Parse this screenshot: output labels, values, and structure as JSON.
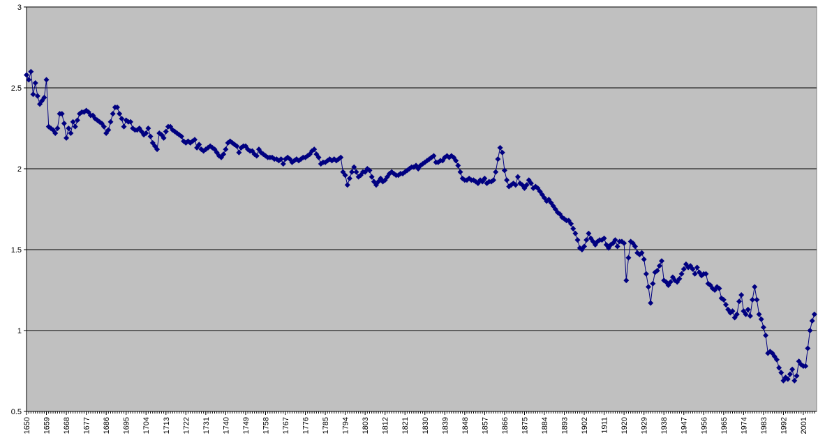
{
  "chart_data": {
    "type": "line",
    "color": "#000080",
    "marker": "diamond",
    "grid": true,
    "plot_background": "#c0c0c0",
    "xlim": [
      1650,
      2007
    ],
    "ylim": [
      0.5,
      3
    ],
    "yticks": [
      0.5,
      1,
      1.5,
      2,
      2.5,
      3
    ],
    "xticks": [
      1650,
      1659,
      1668,
      1677,
      1686,
      1695,
      1704,
      1713,
      1722,
      1731,
      1740,
      1749,
      1758,
      1767,
      1776,
      1785,
      1794,
      1803,
      1812,
      1821,
      1830,
      1839,
      1848,
      1857,
      1866,
      1875,
      1884,
      1893,
      1902,
      1911,
      1920,
      1929,
      1938,
      1947,
      1956,
      1965,
      1974,
      1983,
      1992,
      2001
    ],
    "x": [
      1650,
      1651,
      1652,
      1653,
      1654,
      1655,
      1656,
      1657,
      1658,
      1659,
      1660,
      1661,
      1662,
      1663,
      1664,
      1665,
      1666,
      1667,
      1668,
      1669,
      1670,
      1671,
      1672,
      1673,
      1674,
      1675,
      1676,
      1677,
      1678,
      1679,
      1680,
      1681,
      1682,
      1683,
      1684,
      1685,
      1686,
      1687,
      1688,
      1689,
      1690,
      1691,
      1692,
      1693,
      1694,
      1695,
      1696,
      1697,
      1698,
      1699,
      1700,
      1701,
      1702,
      1703,
      1704,
      1705,
      1706,
      1707,
      1708,
      1709,
      1710,
      1711,
      1712,
      1713,
      1714,
      1715,
      1716,
      1717,
      1718,
      1719,
      1720,
      1721,
      1722,
      1723,
      1724,
      1725,
      1726,
      1727,
      1728,
      1729,
      1730,
      1731,
      1732,
      1733,
      1734,
      1735,
      1736,
      1737,
      1738,
      1739,
      1740,
      1741,
      1742,
      1743,
      1744,
      1745,
      1746,
      1747,
      1748,
      1749,
      1750,
      1751,
      1752,
      1753,
      1754,
      1755,
      1756,
      1757,
      1758,
      1759,
      1760,
      1761,
      1762,
      1763,
      1764,
      1765,
      1766,
      1767,
      1768,
      1769,
      1770,
      1771,
      1772,
      1773,
      1774,
      1775,
      1776,
      1777,
      1778,
      1779,
      1780,
      1781,
      1782,
      1783,
      1784,
      1785,
      1786,
      1787,
      1788,
      1789,
      1790,
      1791,
      1792,
      1793,
      1794,
      1795,
      1796,
      1797,
      1798,
      1799,
      1800,
      1801,
      1802,
      1803,
      1804,
      1805,
      1806,
      1807,
      1808,
      1809,
      1810,
      1811,
      1812,
      1813,
      1814,
      1815,
      1816,
      1817,
      1818,
      1819,
      1820,
      1821,
      1822,
      1823,
      1824,
      1825,
      1826,
      1827,
      1828,
      1829,
      1830,
      1831,
      1832,
      1833,
      1834,
      1835,
      1836,
      1837,
      1838,
      1839,
      1840,
      1841,
      1842,
      1843,
      1844,
      1845,
      1846,
      1847,
      1848,
      1849,
      1850,
      1851,
      1852,
      1853,
      1854,
      1855,
      1856,
      1857,
      1858,
      1859,
      1860,
      1861,
      1862,
      1863,
      1864,
      1865,
      1866,
      1867,
      1868,
      1869,
      1870,
      1871,
      1872,
      1873,
      1874,
      1875,
      1876,
      1877,
      1878,
      1879,
      1880,
      1881,
      1882,
      1883,
      1884,
      1885,
      1886,
      1887,
      1888,
      1889,
      1890,
      1891,
      1892,
      1893,
      1894,
      1895,
      1896,
      1897,
      1898,
      1899,
      1900,
      1901,
      1902,
      1903,
      1904,
      1905,
      1906,
      1907,
      1908,
      1909,
      1910,
      1911,
      1912,
      1913,
      1914,
      1915,
      1916,
      1917,
      1918,
      1919,
      1920,
      1921,
      1922,
      1923,
      1924,
      1925,
      1926,
      1927,
      1928,
      1929,
      1930,
      1931,
      1932,
      1933,
      1934,
      1935,
      1936,
      1937,
      1938,
      1939,
      1940,
      1941,
      1942,
      1943,
      1944,
      1945,
      1946,
      1947,
      1948,
      1949,
      1950,
      1951,
      1952,
      1953,
      1954,
      1955,
      1956,
      1957,
      1958,
      1959,
      1960,
      1961,
      1962,
      1963,
      1964,
      1965,
      1966,
      1967,
      1968,
      1969,
      1970,
      1971,
      1972,
      1973,
      1974,
      1975,
      1976,
      1977,
      1978,
      1979,
      1980,
      1981,
      1982,
      1983,
      1984,
      1985,
      1986,
      1987,
      1988,
      1989,
      1990,
      1991,
      1992,
      1993,
      1994,
      1995,
      1996,
      1997,
      1998,
      1999,
      2000,
      2001,
      2002,
      2003,
      2004,
      2005,
      2006
    ],
    "values": [
      2.58,
      2.55,
      2.6,
      2.46,
      2.53,
      2.45,
      2.4,
      2.42,
      2.44,
      2.55,
      2.26,
      2.25,
      2.24,
      2.22,
      2.25,
      2.34,
      2.34,
      2.28,
      2.19,
      2.25,
      2.22,
      2.29,
      2.26,
      2.3,
      2.34,
      2.35,
      2.35,
      2.36,
      2.35,
      2.33,
      2.33,
      2.31,
      2.3,
      2.29,
      2.28,
      2.26,
      2.22,
      2.24,
      2.29,
      2.34,
      2.38,
      2.38,
      2.34,
      2.31,
      2.26,
      2.3,
      2.29,
      2.29,
      2.25,
      2.24,
      2.24,
      2.25,
      2.23,
      2.21,
      2.22,
      2.25,
      2.2,
      2.16,
      2.14,
      2.12,
      2.22,
      2.21,
      2.19,
      2.23,
      2.26,
      2.26,
      2.24,
      2.23,
      2.22,
      2.21,
      2.2,
      2.17,
      2.16,
      2.17,
      2.16,
      2.17,
      2.18,
      2.13,
      2.15,
      2.12,
      2.11,
      2.12,
      2.13,
      2.14,
      2.13,
      2.12,
      2.1,
      2.08,
      2.07,
      2.09,
      2.12,
      2.16,
      2.17,
      2.16,
      2.15,
      2.14,
      2.1,
      2.13,
      2.14,
      2.14,
      2.12,
      2.11,
      2.11,
      2.09,
      2.08,
      2.12,
      2.1,
      2.09,
      2.08,
      2.07,
      2.07,
      2.07,
      2.06,
      2.06,
      2.05,
      2.06,
      2.03,
      2.06,
      2.07,
      2.06,
      2.04,
      2.05,
      2.06,
      2.05,
      2.06,
      2.07,
      2.07,
      2.08,
      2.09,
      2.11,
      2.12,
      2.09,
      2.07,
      2.03,
      2.04,
      2.04,
      2.05,
      2.06,
      2.05,
      2.06,
      2.05,
      2.06,
      2.07,
      1.98,
      1.96,
      1.9,
      1.94,
      1.98,
      2.01,
      1.98,
      1.95,
      1.96,
      1.98,
      1.98,
      2.0,
      1.99,
      1.95,
      1.92,
      1.9,
      1.92,
      1.94,
      1.92,
      1.93,
      1.95,
      1.97,
      1.98,
      1.97,
      1.96,
      1.96,
      1.97,
      1.97,
      1.98,
      1.99,
      2.0,
      2.01,
      2.01,
      2.02,
      2.0,
      2.02,
      2.03,
      2.04,
      2.05,
      2.06,
      2.07,
      2.08,
      2.04,
      2.04,
      2.05,
      2.05,
      2.07,
      2.08,
      2.07,
      2.08,
      2.07,
      2.05,
      2.02,
      1.98,
      1.94,
      1.93,
      1.93,
      1.94,
      1.93,
      1.93,
      1.92,
      1.91,
      1.93,
      1.92,
      1.94,
      1.91,
      1.92,
      1.92,
      1.93,
      1.98,
      2.06,
      2.13,
      2.1,
      1.99,
      1.93,
      1.89,
      1.9,
      1.91,
      1.9,
      1.95,
      1.91,
      1.9,
      1.88,
      1.9,
      1.93,
      1.91,
      1.88,
      1.89,
      1.88,
      1.86,
      1.84,
      1.82,
      1.8,
      1.81,
      1.79,
      1.77,
      1.75,
      1.73,
      1.72,
      1.7,
      1.69,
      1.68,
      1.68,
      1.66,
      1.63,
      1.6,
      1.56,
      1.51,
      1.5,
      1.52,
      1.56,
      1.6,
      1.57,
      1.55,
      1.53,
      1.55,
      1.56,
      1.56,
      1.57,
      1.53,
      1.51,
      1.53,
      1.54,
      1.56,
      1.52,
      1.55,
      1.55,
      1.54,
      1.31,
      1.45,
      1.55,
      1.54,
      1.52,
      1.48,
      1.47,
      1.48,
      1.44,
      1.35,
      1.27,
      1.17,
      1.29,
      1.36,
      1.37,
      1.4,
      1.43,
      1.31,
      1.3,
      1.28,
      1.3,
      1.33,
      1.31,
      1.3,
      1.32,
      1.35,
      1.38,
      1.41,
      1.39,
      1.4,
      1.38,
      1.35,
      1.39,
      1.36,
      1.34,
      1.35,
      1.35,
      1.29,
      1.28,
      1.26,
      1.25,
      1.27,
      1.26,
      1.2,
      1.19,
      1.16,
      1.13,
      1.11,
      1.12,
      1.08,
      1.1,
      1.18,
      1.22,
      1.12,
      1.1,
      1.13,
      1.09,
      1.19,
      1.27,
      1.19,
      1.1,
      1.07,
      1.02,
      0.97,
      0.86,
      0.87,
      0.86,
      0.84,
      0.82,
      0.77,
      0.74,
      0.69,
      0.71,
      0.7,
      0.73,
      0.76,
      0.69,
      0.72,
      0.81,
      0.79,
      0.78,
      0.78,
      0.89,
      1.0,
      1.06,
      1.1
    ]
  }
}
